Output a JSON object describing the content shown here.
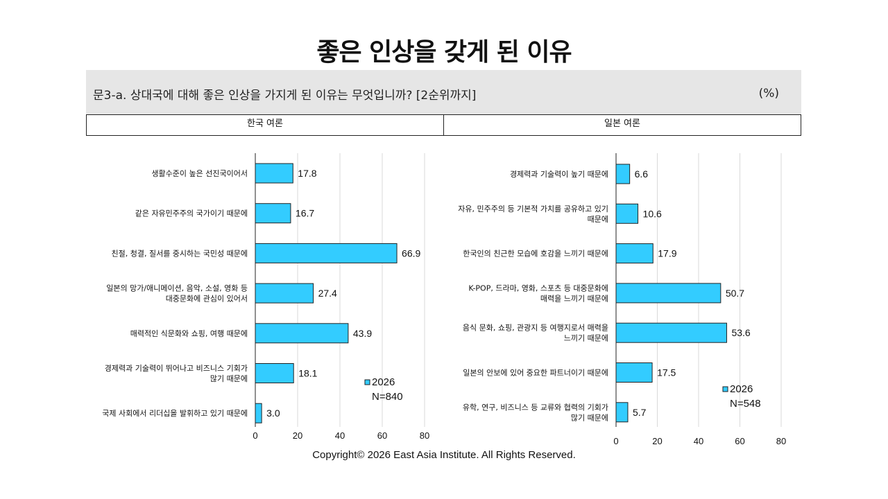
{
  "title": "좋은 인상을 갖게 된 이유",
  "question": "문3-a. 상대국에 대해 좋은 인상을 가지게 된 이유는 무엇입니까? [2순위까지]",
  "unit": "(%)",
  "copyright": "Copyright© 2026 East Asia Institute. All Rights Reserved.",
  "colors": {
    "bar": "#33ccff",
    "bar_border": "#222222",
    "grid": "#d9d9d9"
  },
  "chart_data": [
    {
      "type": "bar",
      "orientation": "horizontal",
      "panel_title": "한국 여론",
      "categories": [
        [
          "생활수준이 높은 선진국이어서"
        ],
        [
          "같은 자유민주주의 국가이기 때문에"
        ],
        [
          "친절, 청결, 질서를 중시하는 국민성 때문에"
        ],
        [
          "일본의 망가/애니메이션,  음악, 소설, 영화 등",
          "대중문화에 관심이 있어서"
        ],
        [
          "매력적인 식문화와 쇼핑, 여행 때문에"
        ],
        [
          "경제력과 기술력이 뛰어나고 비즈니스 기회가",
          "많기 때문에"
        ],
        [
          "국제 사회에서 리더십을 발휘하고 있기 때문에"
        ]
      ],
      "series": [
        {
          "name": "2026",
          "values": [
            17.8,
            16.7,
            66.9,
            27.4,
            43.9,
            18.1,
            3.0
          ]
        }
      ],
      "value_labels": [
        "17.8",
        "16.7",
        "66.9",
        "27.4",
        "43.9",
        "18.1",
        "3.0"
      ],
      "legend": {
        "series": "2026",
        "note": "N=840"
      },
      "xlim": [
        0,
        80
      ],
      "xticks": [
        "0",
        "20",
        "40",
        "60",
        "80"
      ],
      "grid": true
    },
    {
      "type": "bar",
      "orientation": "horizontal",
      "panel_title": "일본 여론",
      "categories": [
        [
          "경제력과 기술력이 높기 때문에"
        ],
        [
          "자유, 민주주의 등 기본적 가치를 공유하고 있기",
          "때문에"
        ],
        [
          "한국인의 친근한 모습에 호감을 느끼기 때문에"
        ],
        [
          "K-POP, 드라마, 영화, 스포츠 등 대중문화에",
          "매력을 느끼기 때문에"
        ],
        [
          "음식 문화, 쇼핑, 관광지 등 여행지로서 매력을",
          "느끼기 때문에"
        ],
        [
          "일본의 안보에 있어 중요한 파트너이기 때문에"
        ],
        [
          "유학, 연구, 비즈니스 등 교류와 협력의 기회가",
          "많기 때문에"
        ]
      ],
      "series": [
        {
          "name": "2026",
          "values": [
            6.6,
            10.6,
            17.9,
            50.7,
            53.6,
            17.5,
            5.7
          ]
        }
      ],
      "value_labels": [
        "6.6",
        "10.6",
        "17.9",
        "50.7",
        "53.6",
        "17.5",
        "5.7"
      ],
      "legend": {
        "series": "2026",
        "note": "N=548"
      },
      "xlim": [
        0,
        80
      ],
      "xticks": [
        "0",
        "20",
        "40",
        "60",
        "80"
      ],
      "grid": true
    }
  ]
}
